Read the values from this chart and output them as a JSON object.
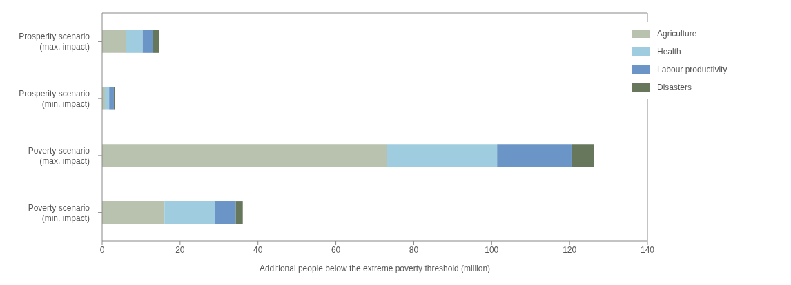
{
  "chart_data": {
    "type": "bar",
    "orientation": "horizontal",
    "stacked": true,
    "xlabel": "Additional people below the extreme poverty threshold (million)",
    "categories": [
      "Prosperity scenario (max. impact)",
      "Prosperity scenario (min. impact)",
      "Poverty scenario (max. impact)",
      "Poverty scenario (min. impact)"
    ],
    "series": [
      {
        "name": "Agriculture",
        "color": "#b8c2ae",
        "values": [
          6.1,
          0.7,
          73.1,
          16.0
        ]
      },
      {
        "name": "Health",
        "color": "#a0cce0",
        "values": [
          4.3,
          1.1,
          28.3,
          13.0
        ]
      },
      {
        "name": "Labour productivity",
        "color": "#6b95c6",
        "values": [
          2.7,
          1.2,
          19.1,
          5.3
        ]
      },
      {
        "name": "Disasters",
        "color": "#66775c",
        "values": [
          1.5,
          0.2,
          5.7,
          1.8
        ]
      }
    ],
    "xlim": [
      0,
      140
    ],
    "xticks": [
      0,
      20,
      40,
      60,
      80,
      100,
      120,
      140
    ],
    "grid": false,
    "legend": "top right"
  }
}
